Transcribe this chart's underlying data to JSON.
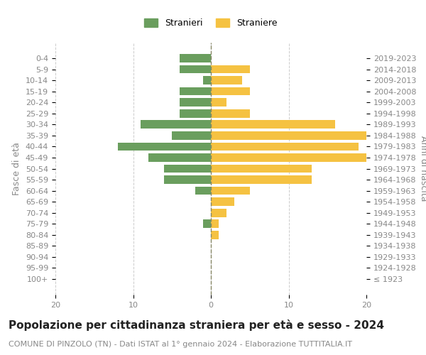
{
  "age_groups": [
    "100+",
    "95-99",
    "90-94",
    "85-89",
    "80-84",
    "75-79",
    "70-74",
    "65-69",
    "60-64",
    "55-59",
    "50-54",
    "45-49",
    "40-44",
    "35-39",
    "30-34",
    "25-29",
    "20-24",
    "15-19",
    "10-14",
    "5-9",
    "0-4"
  ],
  "birth_years": [
    "≤ 1923",
    "1924-1928",
    "1929-1933",
    "1934-1938",
    "1939-1943",
    "1944-1948",
    "1949-1953",
    "1954-1958",
    "1959-1963",
    "1964-1968",
    "1969-1973",
    "1974-1978",
    "1979-1983",
    "1984-1988",
    "1989-1993",
    "1994-1998",
    "1999-2003",
    "2004-2008",
    "2009-2013",
    "2014-2018",
    "2019-2023"
  ],
  "males": [
    0,
    0,
    0,
    0,
    0,
    1,
    0,
    0,
    2,
    6,
    6,
    8,
    12,
    5,
    9,
    4,
    4,
    4,
    1,
    4,
    4
  ],
  "females": [
    0,
    0,
    0,
    0,
    1,
    1,
    2,
    3,
    5,
    13,
    13,
    20,
    19,
    20,
    16,
    5,
    2,
    5,
    4,
    5,
    0
  ],
  "male_color": "#6a9e5e",
  "female_color": "#f5c242",
  "background_color": "#ffffff",
  "grid_color": "#cccccc",
  "title": "Popolazione per cittadinanza straniera per età e sesso - 2024",
  "subtitle": "COMUNE DI PINZOLO (TN) - Dati ISTAT al 1° gennaio 2024 - Elaborazione TUTTITALIA.IT",
  "ylabel_left": "Fasce di età",
  "ylabel_right": "Anni di nascita",
  "legend_male": "Stranieri",
  "legend_female": "Straniere",
  "xlim": 20,
  "title_fontsize": 11,
  "subtitle_fontsize": 8,
  "tick_fontsize": 8,
  "label_fontsize": 9
}
